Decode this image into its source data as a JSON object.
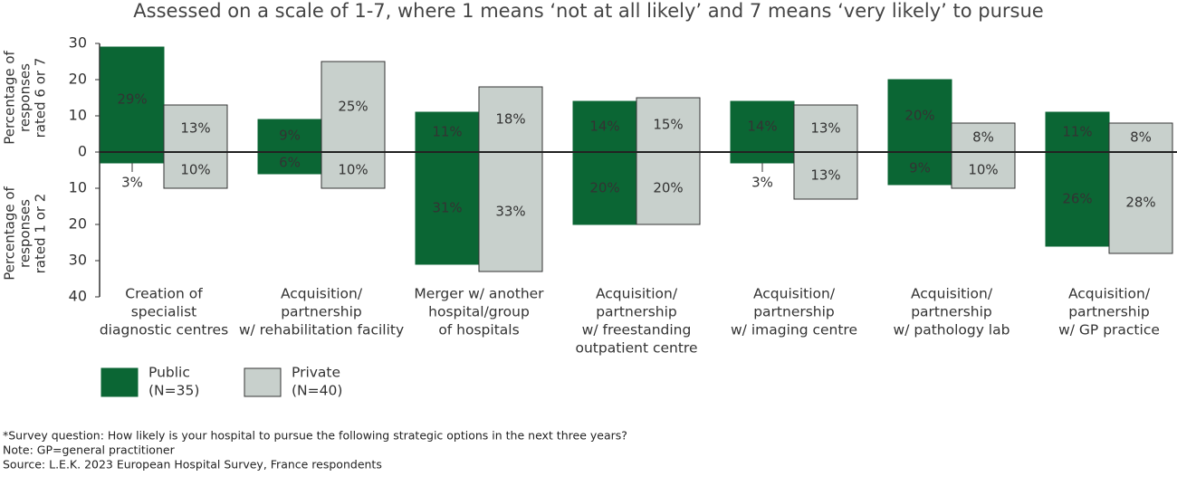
{
  "chart_data": {
    "type": "bar",
    "title": "Assessed on a scale of 1-7, where 1 means ‘not at all likely’ and 7 means ‘very likely’ to pursue",
    "y_label_top": [
      "Percentage of",
      "responses",
      "rated 6 or 7"
    ],
    "y_label_bottom": [
      "Percentage of",
      "responses",
      "rated 1 or 2"
    ],
    "categories": [
      [
        "Creation of",
        "specialist",
        "diagnostic centres"
      ],
      [
        "Acquisition/",
        "partnership",
        "w/ rehabilitation facility"
      ],
      [
        "Merger w/ another",
        "hospital/group",
        "of hospitals"
      ],
      [
        "Acquisition/",
        "partnership",
        "w/ freestanding",
        "outpatient centre"
      ],
      [
        "Acquisition/",
        "partnership",
        "w/ imaging centre"
      ],
      [
        "Acquisition/",
        "partnership",
        "w/ pathology lab"
      ],
      [
        "Acquisition/",
        "partnership",
        "w/ GP practice"
      ]
    ],
    "series": [
      {
        "name": [
          "Public",
          "(N=35)"
        ],
        "color": "#0b6634",
        "values": [
          29,
          9,
          11,
          14,
          14,
          20,
          11
        ],
        "value_labels": [
          "29%",
          "9%",
          "11%",
          "14%",
          "14%",
          "20%",
          "11%"
        ],
        "low_values": [
          -3,
          -6,
          -31,
          -20,
          -3,
          -9,
          -26
        ],
        "low_value_labels": [
          "3%",
          "6%",
          "31%",
          "20%",
          "3%",
          "9%",
          "26%"
        ]
      },
      {
        "name": [
          "Private",
          "(N=40)"
        ],
        "color": "#c8d0cc",
        "values": [
          13,
          25,
          18,
          15,
          13,
          8,
          8
        ],
        "value_labels": [
          "13%",
          "25%",
          "18%",
          "15%",
          "13%",
          "8%",
          "8%"
        ],
        "low_values": [
          -10,
          -10,
          -33,
          -20,
          -13,
          -10,
          -28
        ],
        "low_value_labels": [
          "10%",
          "10%",
          "33%",
          "20%",
          "13%",
          "10%",
          "28%"
        ]
      }
    ],
    "ylim": [
      -40,
      30
    ],
    "yticks": [
      30,
      20,
      10,
      0,
      {
        "value": -10,
        "label": "10"
      },
      {
        "value": -20,
        "label": "20"
      },
      {
        "value": -30,
        "label": "30"
      },
      {
        "value": -40,
        "label": "40"
      }
    ],
    "footnotes": [
      "*Survey question: How likely is your hospital to pursue the following strategic options in the next three years?",
      "Note: GP=general practitioner",
      "Source: L.E.K. 2023 European Hospital Survey, France respondents"
    ]
  }
}
